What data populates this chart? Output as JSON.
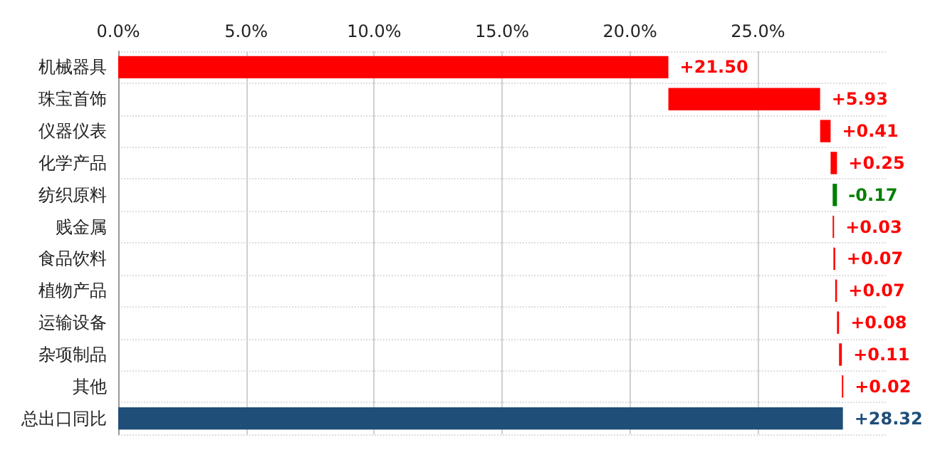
{
  "chart_data": {
    "type": "bar",
    "orientation": "horizontal",
    "categories": [
      "机械器具",
      "珠宝首饰",
      "仪器仪表",
      "化学产品",
      "纺织原料",
      "贱金属",
      "食品饮料",
      "植物产品",
      "运输设备",
      "杂项制品",
      "其他",
      "总出口同比"
    ],
    "values": [
      21.5,
      5.93,
      0.41,
      0.25,
      -0.17,
      0.03,
      0.07,
      0.07,
      0.08,
      0.11,
      0.02,
      28.32
    ],
    "base": [
      0,
      21.5,
      27.43,
      27.84,
      28.09,
      27.92,
      27.95,
      28.02,
      28.09,
      28.17,
      28.28,
      0
    ],
    "colors": [
      "#ff0000",
      "#ff0000",
      "#ff0000",
      "#ff0000",
      "#008000",
      "#ff0000",
      "#ff0000",
      "#ff0000",
      "#ff0000",
      "#ff0000",
      "#ff0000",
      "#1f4e79"
    ],
    "value_labels": [
      "+21.50",
      "+5.93",
      "+0.41",
      "+0.25",
      "-0.17",
      "+0.03",
      "+0.07",
      "+0.07",
      "+0.08",
      "+0.11",
      "+0.02",
      "+28.32"
    ],
    "xlim": [
      0,
      30
    ],
    "xticks": [
      {
        "value": 0,
        "label": "0.0%"
      },
      {
        "value": 5,
        "label": "5.0%"
      },
      {
        "value": 10,
        "label": "10.0%"
      },
      {
        "value": 15,
        "label": "15.0%"
      },
      {
        "value": 20,
        "label": "20.0%"
      },
      {
        "value": 25,
        "label": "25.0%"
      }
    ],
    "grid": true
  }
}
